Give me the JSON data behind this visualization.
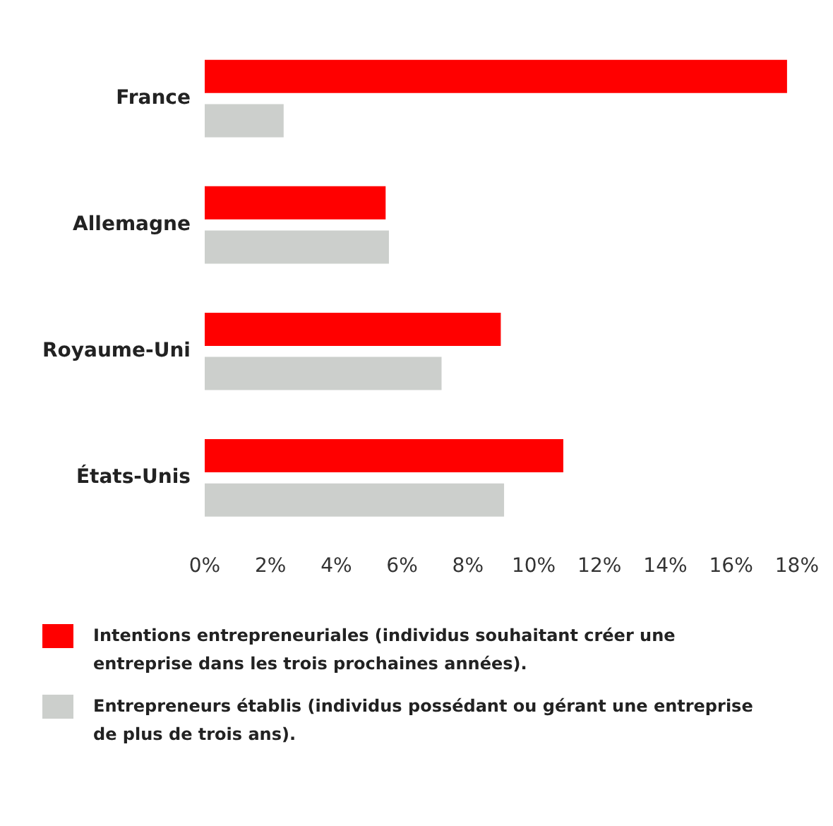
{
  "chart_data": {
    "type": "bar",
    "orientation": "horizontal",
    "categories": [
      "France",
      "Allemagne",
      "Royaume-Uni",
      "États-Unis"
    ],
    "series": [
      {
        "name": "Intentions entrepreneuriales (individus souhaitant  créer une entreprise dans les trois prochaines années).",
        "color": "#ff0000",
        "values": [
          17.7,
          5.5,
          9.0,
          10.9
        ]
      },
      {
        "name": "Entrepreneurs établis (individus possédant ou gérant une entreprise de plus de trois ans).",
        "color": "#cccfcc",
        "values": [
          2.4,
          5.6,
          7.2,
          9.1
        ]
      }
    ],
    "xlim": [
      0,
      18
    ],
    "xticks": [
      {
        "value": 0,
        "label": "0%"
      },
      {
        "value": 2,
        "label": "2%"
      },
      {
        "value": 4,
        "label": "4%"
      },
      {
        "value": 6,
        "label": "6%"
      },
      {
        "value": 8,
        "label": "8%"
      },
      {
        "value": 10,
        "label": "10%"
      },
      {
        "value": 12,
        "label": "12%"
      },
      {
        "value": 14,
        "label": "14%"
      },
      {
        "value": 16,
        "label": "16%"
      },
      {
        "value": 18,
        "label": "18%"
      }
    ],
    "grid": false,
    "legend": "bottom"
  }
}
